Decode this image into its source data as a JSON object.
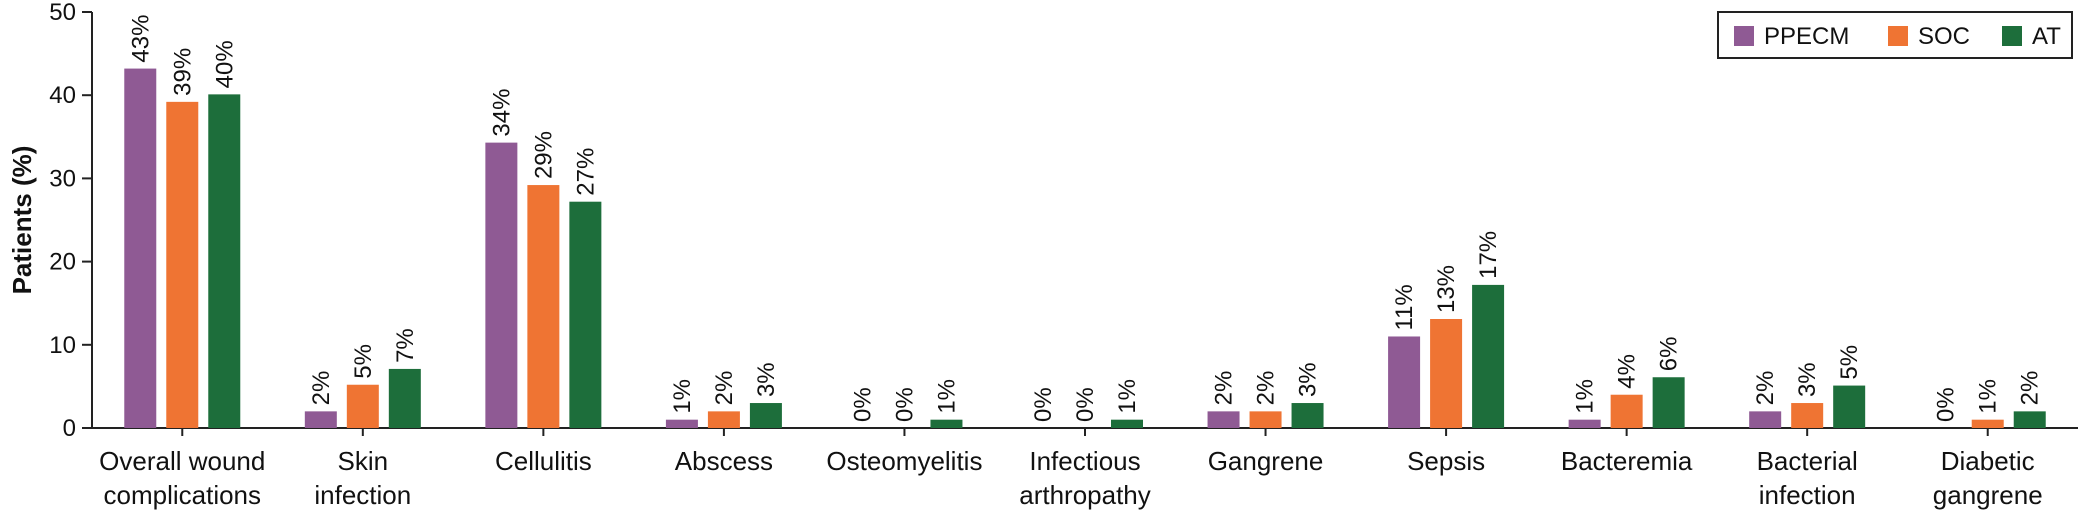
{
  "chart_data": {
    "type": "bar",
    "title": "",
    "xlabel": "",
    "ylabel": "Patients (%)",
    "ylim": [
      0,
      50
    ],
    "yticks": [
      0,
      10,
      20,
      30,
      40,
      50
    ],
    "grid": false,
    "legend_position": "top-right",
    "categories": [
      [
        "Overall wound",
        "complications"
      ],
      [
        "Skin",
        "infection"
      ],
      [
        "Cellulitis"
      ],
      [
        "Abscess"
      ],
      [
        "Osteomyelitis"
      ],
      [
        "Infectious",
        "arthropathy"
      ],
      [
        "Gangrene"
      ],
      [
        "Sepsis"
      ],
      [
        "Bacteremia"
      ],
      [
        "Bacterial",
        "infection"
      ],
      [
        "Diabetic",
        "gangrene"
      ]
    ],
    "series": [
      {
        "name": "PPECM",
        "color": "#8f5a94",
        "values": [
          43.2,
          2.0,
          34.3,
          1.0,
          0.0,
          0.0,
          2.0,
          11.0,
          1.0,
          2.0,
          0.0
        ],
        "labels": [
          "43%",
          "2%",
          "34%",
          "1%",
          "0%",
          "0%",
          "2%",
          "11%",
          "1%",
          "2%",
          "0%"
        ]
      },
      {
        "name": "SOC",
        "color": "#ef7433",
        "values": [
          39.2,
          5.2,
          29.2,
          2.0,
          0.0,
          0.0,
          2.0,
          13.1,
          4.0,
          3.0,
          1.0
        ],
        "labels": [
          "39%",
          "5%",
          "29%",
          "2%",
          "0%",
          "0%",
          "2%",
          "13%",
          "4%",
          "3%",
          "1%"
        ]
      },
      {
        "name": "AT",
        "color": "#1d6e3b",
        "values": [
          40.1,
          7.1,
          27.2,
          3.0,
          1.0,
          1.0,
          3.0,
          17.2,
          6.1,
          5.1,
          2.0
        ],
        "labels": [
          "40%",
          "7%",
          "27%",
          "3%",
          "1%",
          "1%",
          "3%",
          "17%",
          "6%",
          "5%",
          "2%"
        ]
      }
    ]
  }
}
